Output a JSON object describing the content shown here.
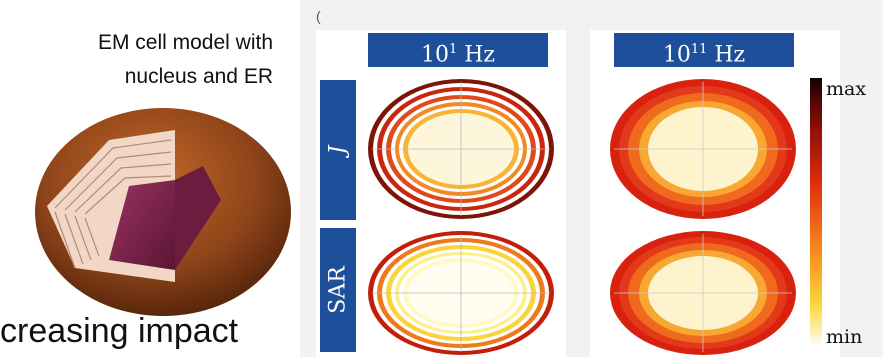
{
  "cell_model": {
    "title_line1": "EM cell model with",
    "title_line2": "nucleus and ER"
  },
  "bottom_text": "creasing impact",
  "left_paren": ")",
  "stray_mark": "(",
  "columns": [
    {
      "base": "10",
      "exp": "1",
      "unit": "Hz"
    },
    {
      "base": "10",
      "exp": "11",
      "unit": "Hz"
    }
  ],
  "rows": [
    {
      "label": "J"
    },
    {
      "label": "SAR"
    }
  ],
  "colorbar": {
    "max_label": "max",
    "min_label": "min"
  },
  "colors": {
    "panel_blue": "#1e4f9a",
    "cell_brown": "#8e4419",
    "nucleus_purple": "#7a2248",
    "membrane_pink": "#f2d7c6"
  }
}
